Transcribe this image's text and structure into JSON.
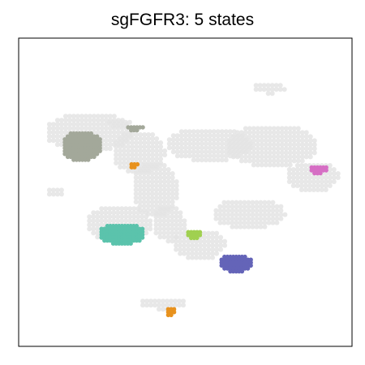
{
  "chart_data": {
    "type": "scatter",
    "title": "sgFGFR3: 5 states",
    "xlabel": "",
    "ylabel": "",
    "xlim": [
      0,
      100
    ],
    "ylim": [
      0,
      100
    ],
    "axes_ticks": false,
    "grid": false,
    "background_color": "#e4e4e4",
    "background_cells": [
      {
        "x": [
          8,
          34
        ],
        "y": [
          63,
          76
        ]
      },
      {
        "x": [
          28,
          44
        ],
        "y": [
          56,
          70
        ]
      },
      {
        "x": [
          34,
          48
        ],
        "y": [
          42,
          60
        ]
      },
      {
        "x": [
          40,
          50
        ],
        "y": [
          34,
          46
        ]
      },
      {
        "x": [
          44,
          70
        ],
        "y": [
          60,
          71
        ]
      },
      {
        "x": [
          62,
          90
        ],
        "y": [
          58,
          72
        ]
      },
      {
        "x": [
          80,
          96
        ],
        "y": [
          50,
          60
        ]
      },
      {
        "x": [
          58,
          80
        ],
        "y": [
          38,
          48
        ]
      },
      {
        "x": [
          46,
          62
        ],
        "y": [
          28,
          38
        ]
      },
      {
        "x": [
          20,
          40
        ],
        "y": [
          34,
          46
        ]
      },
      {
        "x": [
          70,
          80
        ],
        "y": [
          82,
          86
        ]
      },
      {
        "x": [
          36,
          50
        ],
        "y": [
          12,
          16
        ]
      },
      {
        "x": [
          8,
          14
        ],
        "y": [
          49,
          52
        ]
      },
      {
        "x": [
          26,
          34
        ],
        "y": [
          71,
          74
        ]
      }
    ],
    "series": [
      {
        "color": "#a3a89a",
        "x": [
          13,
          25
        ],
        "y": [
          60,
          70
        ]
      },
      {
        "color": "#a3a89a",
        "x": [
          32,
          38
        ],
        "y": [
          70,
          72
        ]
      },
      {
        "color": "#5bc3ac",
        "x": [
          24,
          38
        ],
        "y": [
          33,
          40
        ]
      },
      {
        "color": "#a0d050",
        "x": [
          50,
          55
        ],
        "y": [
          35,
          38
        ]
      },
      {
        "color": "#6464b8",
        "x": [
          60,
          70
        ],
        "y": [
          24,
          30
        ]
      },
      {
        "color": "#d66ec4",
        "x": [
          87,
          93
        ],
        "y": [
          56,
          59
        ]
      },
      {
        "color": "#e8921e",
        "x": [
          33,
          36
        ],
        "y": [
          58,
          60
        ]
      },
      {
        "color": "#e8921e",
        "x": [
          44,
          47
        ],
        "y": [
          10,
          13
        ]
      }
    ]
  }
}
